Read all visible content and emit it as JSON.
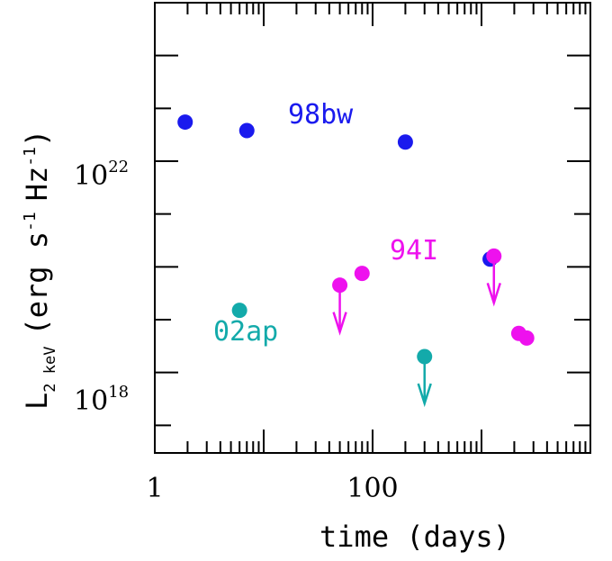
{
  "chart_data": {
    "type": "scatter",
    "xscale": "log",
    "yscale": "log",
    "xlim": [
      1,
      10000
    ],
    "ylim": [
      3e+16,
      1e+25
    ],
    "xlabel": "time (days)",
    "ylabel_main": "L",
    "ylabel_sub": "2 keV",
    "ylabel_rest": "(erg s",
    "ylabel_exp1": "-1",
    "ylabel_mid": "Hz",
    "ylabel_exp2": "-1",
    "ylabel_close": ")",
    "x_tick_labels": [
      {
        "value": 1,
        "label": "1"
      },
      {
        "value": 100,
        "label": "100"
      }
    ],
    "y_tick_labels": [
      {
        "value": 1e+22,
        "base": "10",
        "exp": "22"
      },
      {
        "value": 1e+18,
        "base": "10",
        "exp": "18"
      }
    ],
    "series": [
      {
        "name": "98bw",
        "color": "#1a1aee",
        "points": [
          {
            "x": 1.9,
            "y": 5.5e+22
          },
          {
            "x": 7.0,
            "y": 3.8e+22
          },
          {
            "x": 200,
            "y": 2.3e+22
          },
          {
            "x": 1200,
            "y": 1.4e+20
          }
        ]
      },
      {
        "name": "94I",
        "color": "#ee11ee",
        "points": [
          {
            "x": 50,
            "y": 4.5e+19,
            "upper_limit": true
          },
          {
            "x": 80,
            "y": 7.5e+19
          },
          {
            "x": 1300,
            "y": 1.6e+20,
            "upper_limit": true
          },
          {
            "x": 2200,
            "y": 5.5e+18
          },
          {
            "x": 2600,
            "y": 4.5e+18
          }
        ]
      },
      {
        "name": "02ap",
        "color": "#13aaaa",
        "points": [
          {
            "x": 6.0,
            "y": 1.5e+19
          },
          {
            "x": 300,
            "y": 2e+18,
            "upper_limit": true
          }
        ]
      }
    ]
  }
}
